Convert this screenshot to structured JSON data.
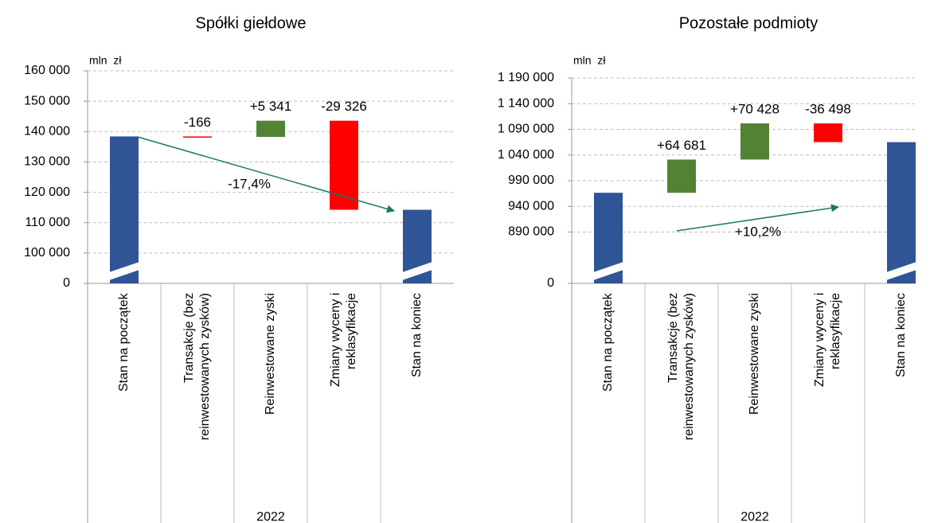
{
  "chart_data": [
    {
      "type": "waterfall",
      "title": "Spółki giełdowe",
      "y_unit": "mln  zł",
      "group_label": "2022",
      "categories": [
        "Stan na początek",
        "Transakcje (bez\nreinwestowanych zysków)",
        "Reinwestowane zyski",
        "Zmiany wyceny i\nreklasyfikacje",
        "Stan na koniec"
      ],
      "values": [
        138400,
        -166,
        5341,
        -29326,
        114249
      ],
      "value_labels": [
        null,
        "-166",
        "+5 341",
        "-29 326",
        null
      ],
      "measure": [
        "total",
        "relative",
        "relative",
        "relative",
        "total"
      ],
      "annotation": "-17,4%",
      "colors": {
        "total": "#2f5597",
        "increase": "#548235",
        "decrease": "#ff0000"
      },
      "ylim": [
        0,
        160000
      ],
      "axis_break": [
        0,
        90000
      ],
      "yticks": [
        0,
        {
          "value": 100000,
          "label": "100 000"
        },
        {
          "value": 110000,
          "label": "110 000"
        },
        {
          "value": 120000,
          "label": "120 000"
        },
        {
          "value": 130000,
          "label": "130 000"
        },
        {
          "value": 140000,
          "label": "140 000"
        },
        {
          "value": 150000,
          "label": "150 000"
        },
        {
          "value": 160000,
          "label": "160 000"
        }
      ],
      "grid": true
    },
    {
      "type": "waterfall",
      "title": "Pozostałe podmioty",
      "y_unit": "mln  zł",
      "group_label": "2022",
      "categories": [
        "Stan na początek",
        "Transakcje (bez\nreinwestowanych zysków)",
        "Reinwestowane zyski",
        "Zmiany wyceny i\nreklasyfikacje",
        "Stan na koniec"
      ],
      "values": [
        966500,
        64681,
        70428,
        -36498,
        1065111
      ],
      "value_labels": [
        null,
        "+64 681",
        "+70 428",
        "-36 498",
        null
      ],
      "measure": [
        "total",
        "relative",
        "relative",
        "relative",
        "total"
      ],
      "annotation": "+10,2%",
      "colors": {
        "total": "#2f5597",
        "increase": "#548235",
        "decrease": "#ff0000"
      },
      "ylim": [
        0,
        1190000
      ],
      "axis_break": [
        0,
        790000
      ],
      "yticks": [
        0,
        {
          "value": 890000,
          "label": "890 000"
        },
        {
          "value": 940000,
          "label": "940 000"
        },
        {
          "value": 990000,
          "label": "990 000"
        },
        {
          "value": 1040000,
          "label": "1 040 000"
        },
        {
          "value": 1090000,
          "label": "1 090 000"
        },
        {
          "value": 1140000,
          "label": "1 140 000"
        },
        {
          "value": 1190000,
          "label": "1 190 000"
        }
      ],
      "grid": true
    }
  ]
}
